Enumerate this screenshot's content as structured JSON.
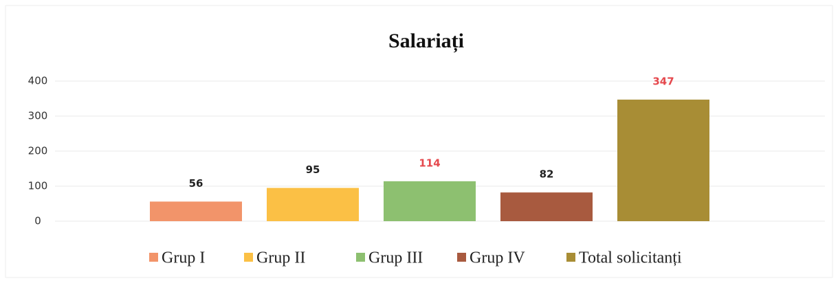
{
  "chart_data": {
    "type": "bar",
    "title": "Salariați",
    "categories": [
      "Grup I",
      "Grup II",
      "Grup III",
      "Grup IV",
      "Total solicitanți"
    ],
    "values": [
      56,
      95,
      114,
      82,
      347
    ],
    "colors": [
      "#f2946a",
      "#fbc045",
      "#8dc070",
      "#a85a3f",
      "#a88d35"
    ],
    "value_label_colors": [
      "#222222",
      "#222222",
      "#e5484d",
      "#222222",
      "#e5484d"
    ],
    "ylim": [
      0,
      400
    ],
    "yticks": [
      0,
      100,
      200,
      300,
      400
    ],
    "grid": true,
    "legend": "bottom"
  }
}
